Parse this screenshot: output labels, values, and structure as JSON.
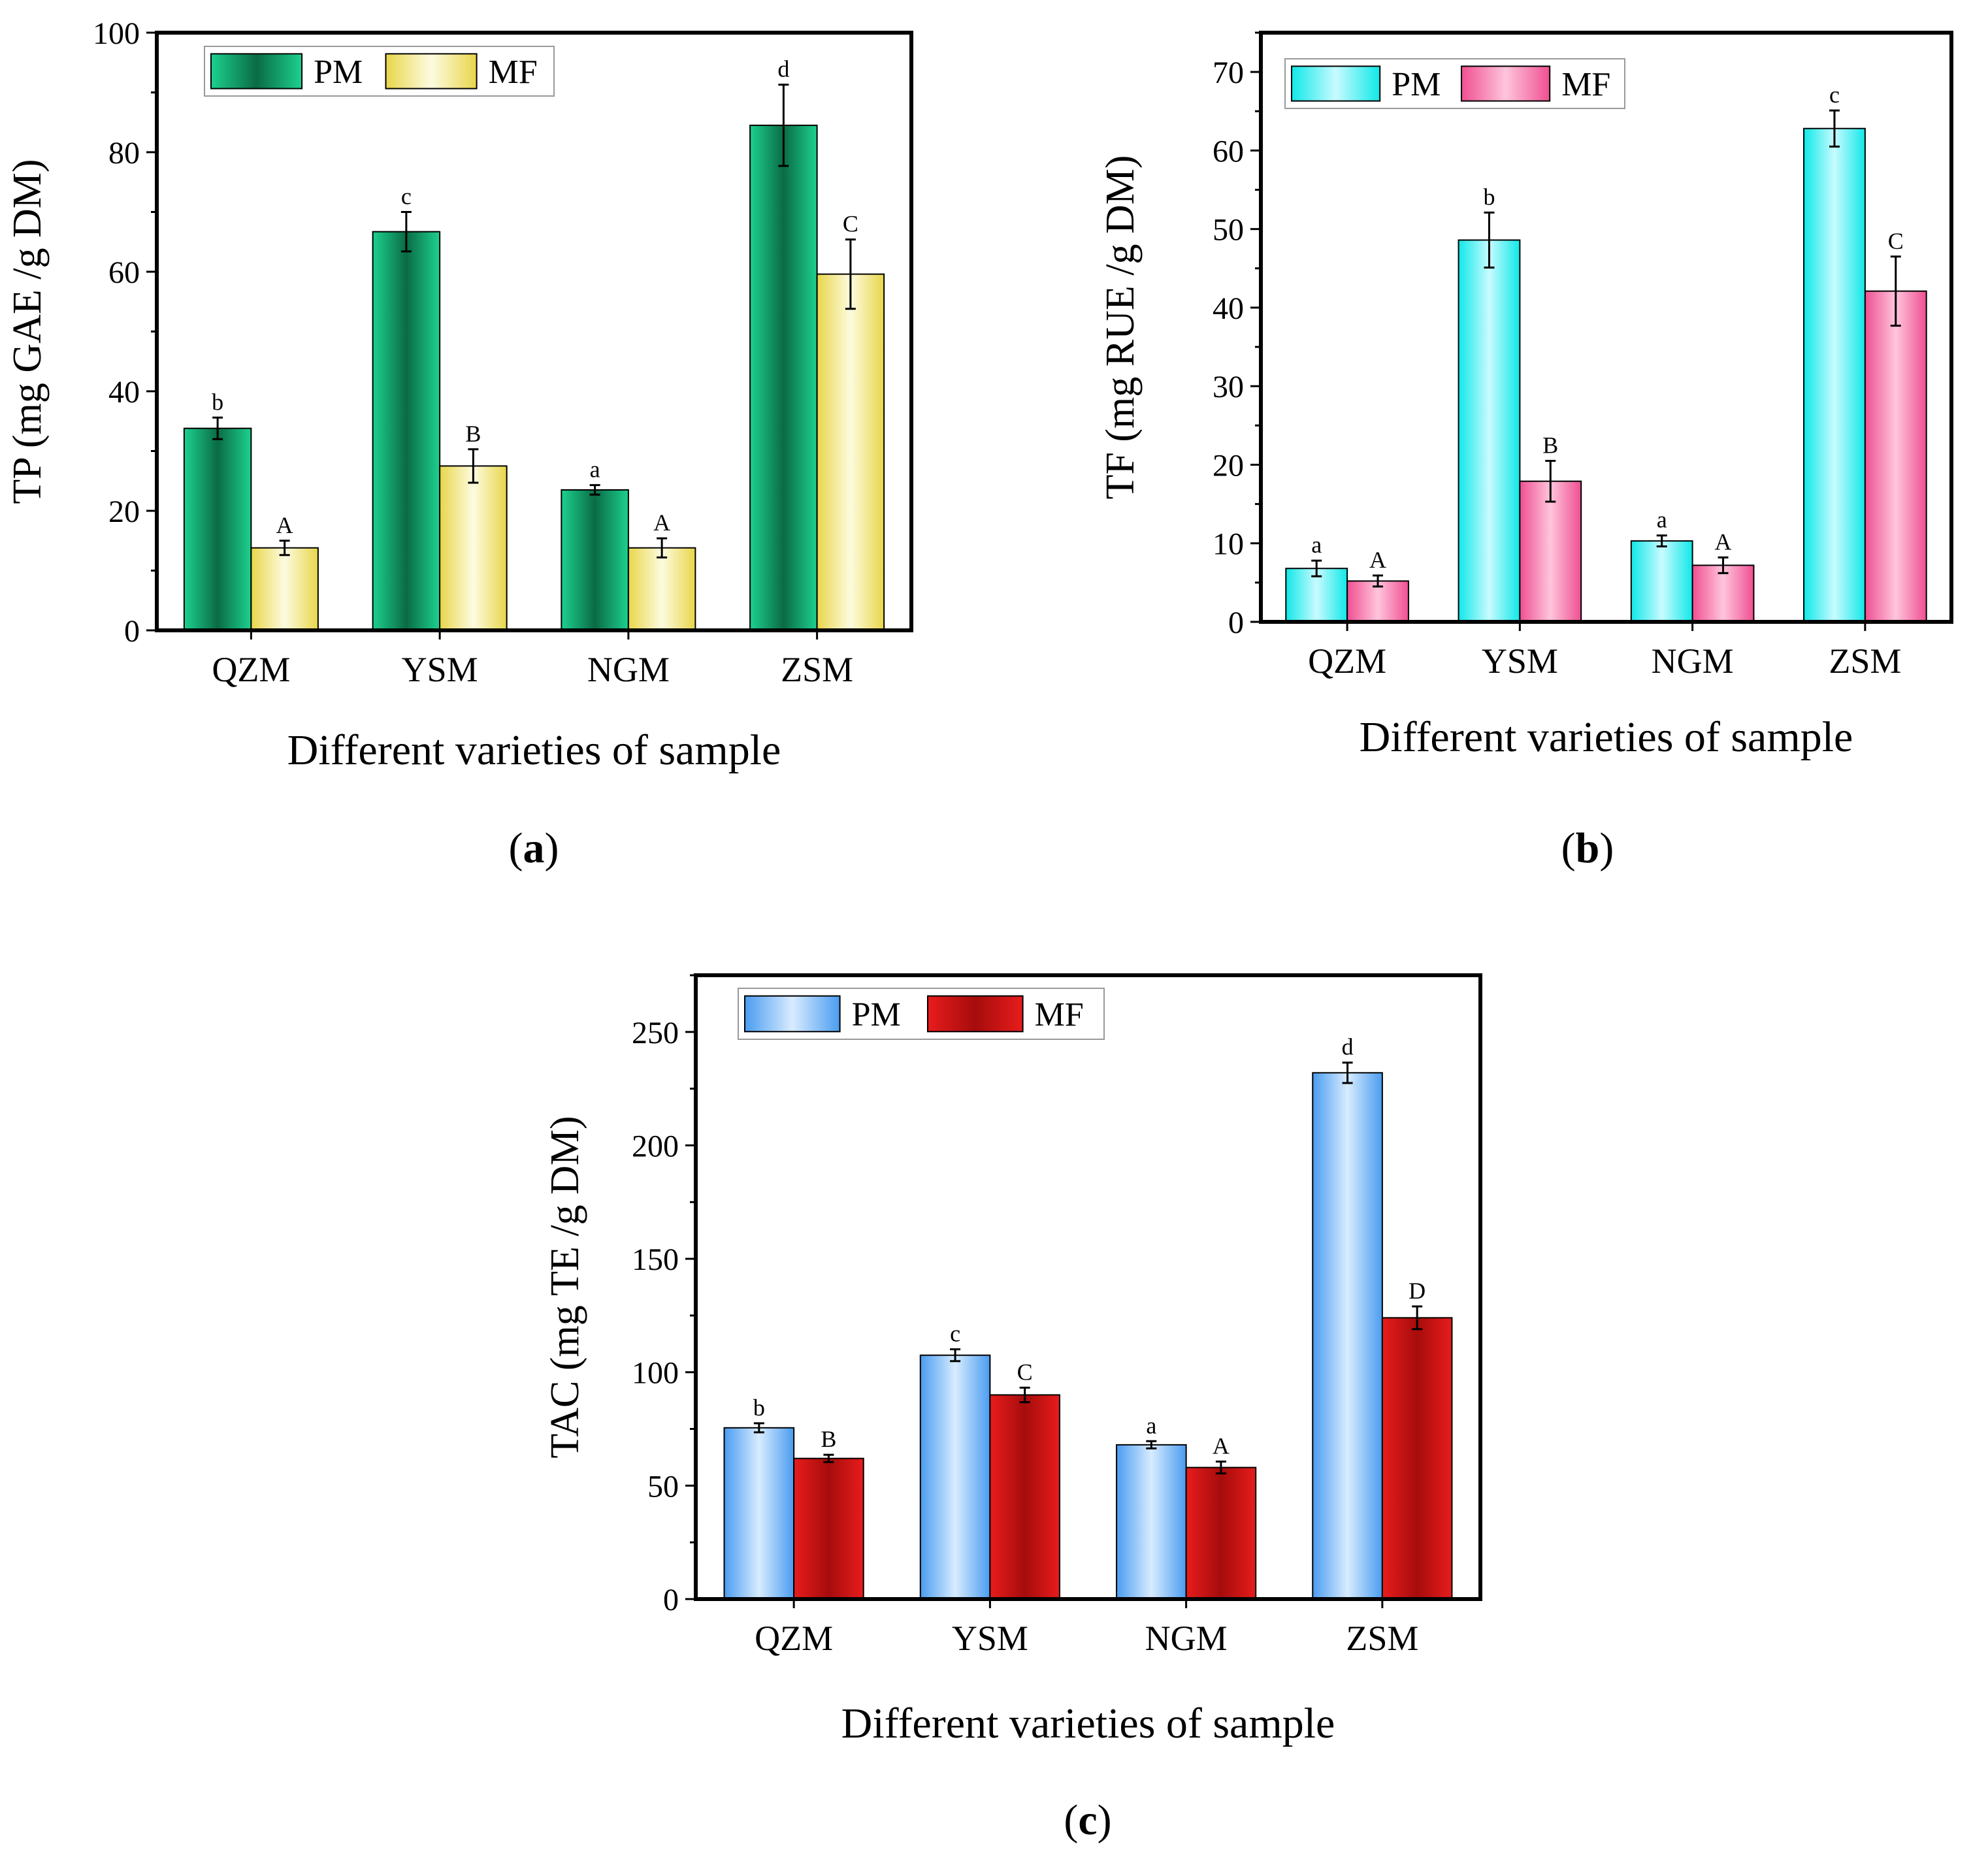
{
  "chart_data": [
    {
      "panel": "(a)",
      "panel_label": {
        "open": "(",
        "letter": "a",
        "close": ")"
      },
      "type": "bar",
      "ylabel": "TP (mg GAE /g DM)",
      "xlabel": "Different varieties of sample",
      "categories": [
        "QZM",
        "YSM",
        "NGM",
        "ZSM"
      ],
      "ylim": [
        0,
        100
      ],
      "yticks": [
        0,
        20,
        40,
        60,
        80,
        100
      ],
      "legend_position": "top-left",
      "series": [
        {
          "name": "PM",
          "values": [
            33.8,
            66.7,
            23.5,
            84.5
          ],
          "errors": [
            1.8,
            3.3,
            0.8,
            6.8
          ],
          "letters": [
            "b",
            "c",
            "a",
            "d"
          ]
        },
        {
          "name": "MF",
          "values": [
            13.8,
            27.5,
            13.8,
            59.6
          ],
          "errors": [
            1.2,
            2.8,
            1.6,
            5.8
          ],
          "letters": [
            "A",
            "B",
            "A",
            "C"
          ]
        }
      ],
      "colors": {
        "PM": {
          "edge": "#1dd18f",
          "center": "#0a6b45"
        },
        "MF": {
          "edge": "#e8d64a",
          "center": "#fdfbe0"
        }
      }
    },
    {
      "panel": "(b)",
      "panel_label": {
        "open": "(",
        "letter": "b",
        "close": ")"
      },
      "type": "bar",
      "ylabel": "TF (mg RUE /g DM)",
      "xlabel": "Different varieties of sample",
      "categories": [
        "QZM",
        "YSM",
        "NGM",
        "ZSM"
      ],
      "ylim": [
        0,
        75
      ],
      "yticks": [
        0,
        10,
        20,
        30,
        40,
        50,
        60,
        70
      ],
      "legend_position": "top-left",
      "series": [
        {
          "name": "PM",
          "values": [
            6.8,
            48.6,
            10.3,
            62.8
          ],
          "errors": [
            1.0,
            3.5,
            0.7,
            2.3
          ],
          "letters": [
            "a",
            "b",
            "a",
            "c"
          ]
        },
        {
          "name": "MF",
          "values": [
            5.2,
            17.9,
            7.2,
            42.1
          ],
          "errors": [
            0.7,
            2.6,
            1.0,
            4.4
          ],
          "letters": [
            "A",
            "B",
            "A",
            "C"
          ]
        }
      ],
      "colors": {
        "PM": {
          "edge": "#10e8e8",
          "center": "#c8fbff"
        },
        "MF": {
          "edge": "#ef4f91",
          "center": "#ffc5dc"
        }
      }
    },
    {
      "panel": "(c)",
      "panel_label": {
        "open": "(",
        "letter": "c",
        "close": ")"
      },
      "type": "bar",
      "ylabel": "TAC (mg TE /g DM)",
      "xlabel": "Different varieties of sample",
      "categories": [
        "QZM",
        "YSM",
        "NGM",
        "ZSM"
      ],
      "ylim": [
        0,
        275
      ],
      "yticks": [
        0,
        50,
        100,
        150,
        200,
        250
      ],
      "legend_position": "top-left",
      "series": [
        {
          "name": "PM",
          "values": [
            75.5,
            107.5,
            68,
            232
          ],
          "errors": [
            2.0,
            2.6,
            1.6,
            4.5
          ],
          "letters": [
            "b",
            "c",
            "a",
            "d"
          ]
        },
        {
          "name": "MF",
          "values": [
            62,
            90,
            58,
            124
          ],
          "errors": [
            1.6,
            3.2,
            2.6,
            5.0
          ],
          "letters": [
            "B",
            "C",
            "A",
            "D"
          ]
        }
      ],
      "colors": {
        "PM": {
          "edge": "#4a9cf0",
          "center": "#d8ecff"
        },
        "MF": {
          "edge": "#e81c1c",
          "center": "#a60c0c"
        }
      }
    }
  ]
}
